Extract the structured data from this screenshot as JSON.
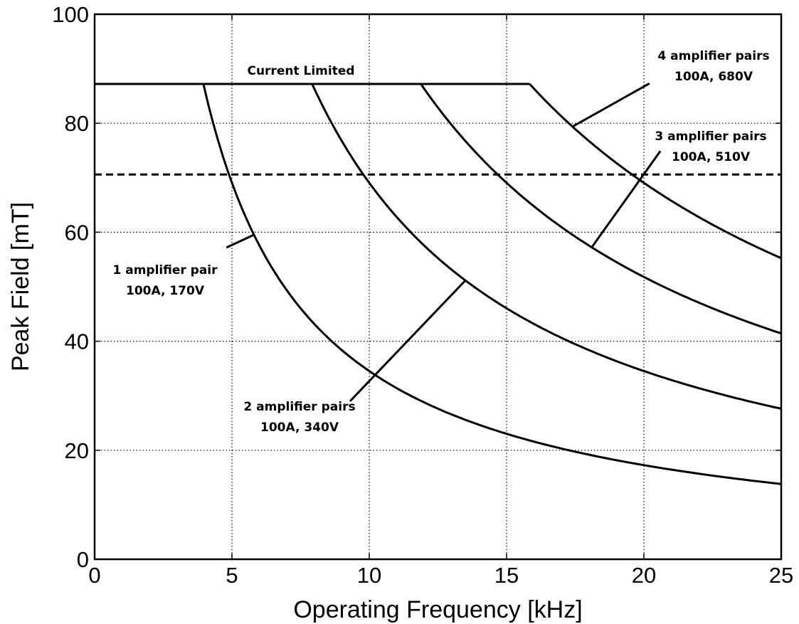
{
  "chart_data": {
    "type": "line",
    "title": "",
    "xlabel": "Operating Frequency [kHz]",
    "ylabel": "Peak Field [mT]",
    "xlim": [
      0,
      25
    ],
    "ylim": [
      0,
      100
    ],
    "xticks": [
      "0",
      "5",
      "10",
      "15",
      "20",
      "25"
    ],
    "yticks": [
      "0",
      "20",
      "40",
      "60",
      "80",
      "100"
    ],
    "grid": "dotted",
    "current_limit_mT": 87.2,
    "threshold_line_mT": 70.6,
    "series": [
      {
        "label_lines": [
          "1 amplifier pair",
          "100A, 170V"
        ],
        "pairs": 1,
        "corner_kHz": 3.96,
        "constant": 345.3
      },
      {
        "label_lines": [
          "2 amplifier pairs",
          "100A, 340V"
        ],
        "pairs": 2,
        "corner_kHz": 7.92,
        "constant": 690.6
      },
      {
        "label_lines": [
          "3 amplifier pairs",
          "100A, 510V"
        ],
        "pairs": 3,
        "corner_kHz": 11.88,
        "constant": 1035.9
      },
      {
        "label_lines": [
          "4 amplifier pairs",
          "100A, 680V"
        ],
        "pairs": 4,
        "corner_kHz": 15.84,
        "constant": 1381.2
      }
    ],
    "annotations": {
      "current_limited": "Current Limited"
    }
  }
}
